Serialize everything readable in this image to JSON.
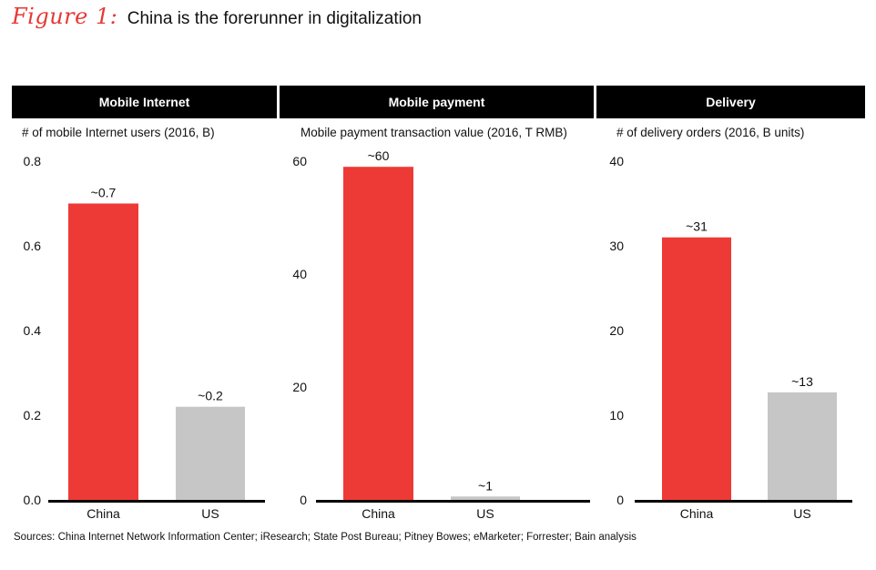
{
  "figure": {
    "label": "Figure 1:",
    "title": "China is the forerunner in digitalization"
  },
  "colors": {
    "china": "#ee3a36",
    "us": "#c6c6c6",
    "header_bg": "#000000",
    "accent": "#e53935"
  },
  "chart_data": [
    {
      "type": "bar",
      "header": "Mobile Internet",
      "subtitle": "# of mobile Internet users (2016, B)",
      "categories": [
        "China",
        "US"
      ],
      "values": [
        0.7,
        0.22
      ],
      "data_labels": [
        "~0.7",
        "~0.2"
      ],
      "ylim": [
        0,
        0.8
      ],
      "yticks": [
        0,
        0.2,
        0.4,
        0.6,
        0.8
      ],
      "ytick_labels": [
        "0.0",
        "0.2",
        "0.4",
        "0.6",
        "0.8"
      ]
    },
    {
      "type": "bar",
      "header": "Mobile payment",
      "subtitle": "Mobile payment transaction value (2016, T RMB)",
      "categories": [
        "China",
        "US"
      ],
      "values": [
        59,
        0.6
      ],
      "data_labels": [
        "~60",
        "~1"
      ],
      "ylim": [
        0,
        60
      ],
      "yticks": [
        0,
        20,
        40,
        60
      ],
      "ytick_labels": [
        "0",
        "20",
        "40",
        "60"
      ]
    },
    {
      "type": "bar",
      "header": "Delivery",
      "subtitle": "# of delivery orders (2016, B units)",
      "categories": [
        "China",
        "US"
      ],
      "values": [
        31,
        12.7
      ],
      "data_labels": [
        "~31",
        "~13"
      ],
      "ylim": [
        0,
        40
      ],
      "yticks": [
        0,
        10,
        20,
        30,
        40
      ],
      "ytick_labels": [
        "0",
        "10",
        "20",
        "30",
        "40"
      ]
    }
  ],
  "sources": "Sources: China Internet Network Information Center; iResearch; State Post Bureau; Pitney Bowes; eMarketer; Forrester; Bain analysis"
}
